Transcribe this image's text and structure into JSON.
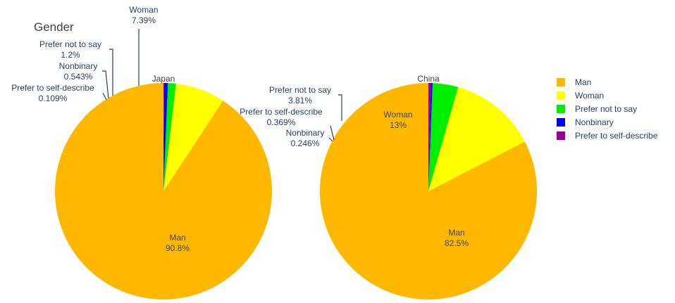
{
  "chart_data": {
    "type": "pie",
    "title": "Gender",
    "categories": [
      "Man",
      "Woman",
      "Prefer not to say",
      "Nonbinary",
      "Prefer to self-describe"
    ],
    "colors": {
      "Man": "#ffb800",
      "Woman": "#ffff00",
      "Prefer not to say": "#00ee00",
      "Nonbinary": "#0000ff",
      "Prefer to self-describe": "#990099"
    },
    "legend_position": "right",
    "series": [
      {
        "name": "Japan",
        "values": {
          "Man": 90.8,
          "Woman": 7.39,
          "Prefer not to say": 1.2,
          "Nonbinary": 0.543,
          "Prefer to self-describe": 0.109
        },
        "labels": {
          "Man": "90.8%",
          "Woman": "7.39%",
          "Prefer not to say": "1.2%",
          "Nonbinary": "0.543%",
          "Prefer to self-describe": "0.109%"
        }
      },
      {
        "name": "China",
        "values": {
          "Man": 82.5,
          "Woman": 13,
          "Prefer not to say": 3.81,
          "Nonbinary": 0.246,
          "Prefer to self-describe": 0.369
        },
        "labels": {
          "Man": "82.5%",
          "Woman": "13%",
          "Prefer not to say": "3.81%",
          "Nonbinary": "0.246%",
          "Prefer to self-describe": "0.369%"
        }
      }
    ]
  }
}
